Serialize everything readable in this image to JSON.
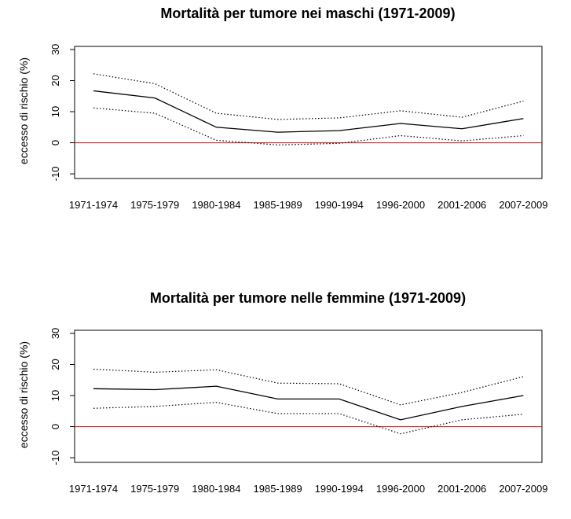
{
  "chart_data": [
    {
      "type": "line",
      "title": "Mortalità per tumore nei maschi (1971-2009)",
      "xlabel": "",
      "ylabel": "eccesso di rischio (%)",
      "categories": [
        "1971-1974",
        "1975-1979",
        "1980-1984",
        "1985-1989",
        "1990-1994",
        "1996-2000",
        "2001-2006",
        "2007-2009"
      ],
      "yticks": [
        "-10",
        "0",
        "10",
        "20",
        "30"
      ],
      "ylim": [
        -11.5,
        31
      ],
      "reference_line": {
        "y": 0,
        "color": "#e02020"
      },
      "series": [
        {
          "role": "upper",
          "style": "dotted",
          "values": [
            22.2,
            19.0,
            9.5,
            7.5,
            8.0,
            10.3,
            8.2,
            13.4
          ]
        },
        {
          "role": "estimate",
          "style": "solid",
          "values": [
            16.7,
            14.4,
            5.0,
            3.4,
            3.9,
            6.2,
            4.5,
            7.8
          ]
        },
        {
          "role": "lower",
          "style": "dotted",
          "values": [
            11.2,
            9.5,
            0.8,
            -0.7,
            -0.2,
            2.3,
            0.6,
            2.3
          ]
        }
      ],
      "grid": false
    },
    {
      "type": "line",
      "title": "Mortalità per tumore nelle femmine (1971-2009)",
      "xlabel": "",
      "ylabel": "eccesso di rischio (%)",
      "categories": [
        "1971-1974",
        "1975-1979",
        "1980-1984",
        "1985-1989",
        "1990-1994",
        "1996-2000",
        "2001-2006",
        "2007-2009"
      ],
      "yticks": [
        "-10",
        "0",
        "10",
        "20",
        "30"
      ],
      "ylim": [
        -11.5,
        31
      ],
      "reference_line": {
        "y": 0,
        "color": "#e02020"
      },
      "series": [
        {
          "role": "upper",
          "style": "dotted",
          "values": [
            18.5,
            17.5,
            18.3,
            14.0,
            13.8,
            7.0,
            11.0,
            16.1
          ]
        },
        {
          "role": "estimate",
          "style": "solid",
          "values": [
            12.2,
            11.9,
            13.0,
            8.9,
            8.9,
            2.2,
            6.5,
            10.0
          ]
        },
        {
          "role": "lower",
          "style": "dotted",
          "values": [
            5.9,
            6.5,
            7.8,
            4.2,
            4.2,
            -2.3,
            2.2,
            4.0
          ]
        }
      ],
      "grid": false
    }
  ],
  "colors": {
    "line": "#000000",
    "reference": "#e02020",
    "axis": "#000000"
  }
}
